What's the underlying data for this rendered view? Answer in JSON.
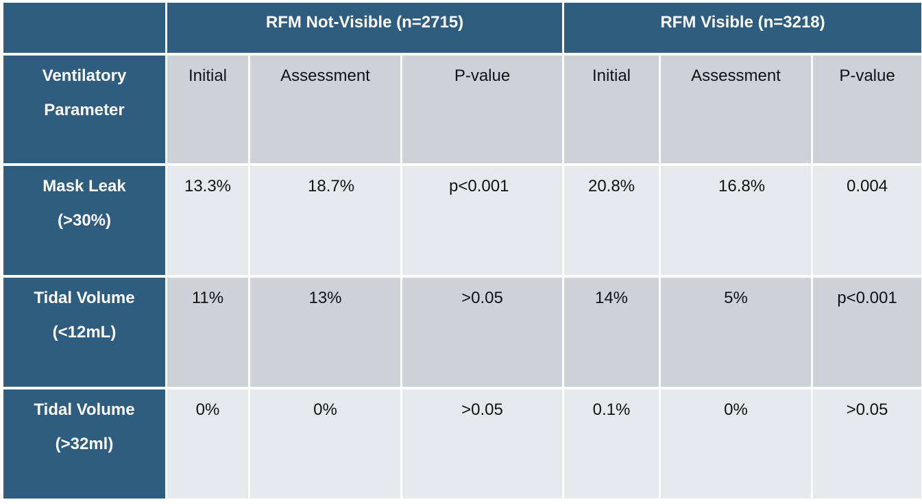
{
  "header": {
    "group_not_visible": "RFM Not-Visible (n=2715)",
    "group_visible": "RFM Visible (n=3218)"
  },
  "columns": {
    "param_label_line1": "Ventilatory",
    "param_label_line2": "Parameter",
    "initial": "Initial",
    "assessment": "Assessment",
    "p_value": "P-value"
  },
  "rows": [
    {
      "label_line1": "Mask Leak",
      "label_line2": "(>30%)",
      "nv_initial": "13.3%",
      "nv_assessment": "18.7%",
      "nv_p": "p<0.001",
      "v_initial": "20.8%",
      "v_assessment": "16.8%",
      "v_p": "0.004"
    },
    {
      "label_line1": "Tidal Volume",
      "label_line2": "(<12mL)",
      "nv_initial": "11%",
      "nv_assessment": "13%",
      "nv_p": ">0.05",
      "v_initial": "14%",
      "v_assessment": "5%",
      "v_p": "p<0.001"
    },
    {
      "label_line1": "Tidal Volume",
      "label_line2": "(>32ml)",
      "nv_initial": "0%",
      "nv_assessment": "0%",
      "nv_p": ">0.05",
      "v_initial": "0.1%",
      "v_assessment": "0%",
      "v_p": ">0.05"
    }
  ],
  "colors": {
    "header_bg": "#2e5d7f",
    "header_text": "#ffffff",
    "row_dark": "#ccd2d7",
    "row_light": "#e6e9ec"
  }
}
